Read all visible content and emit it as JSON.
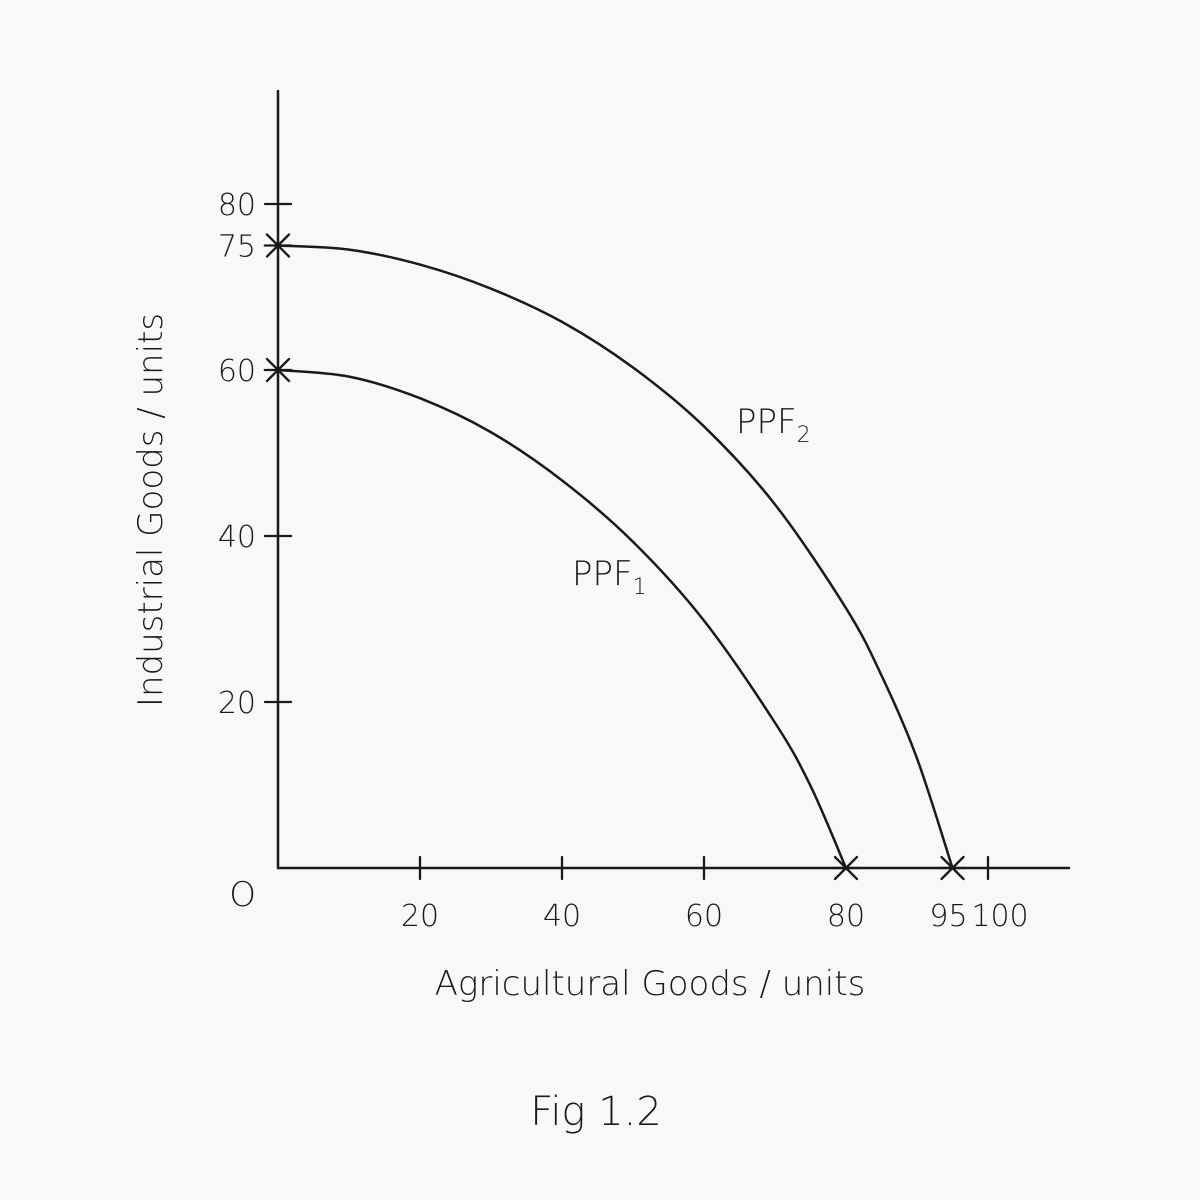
{
  "caption": "Fig 1.2",
  "chart_data": {
    "type": "line",
    "title": "",
    "xlabel": "Agricultural Goods / units",
    "ylabel": "Industrial Goods / units",
    "origin_label": "O",
    "xlim": [
      0,
      110
    ],
    "ylim": [
      0,
      90
    ],
    "x_ticks": [
      {
        "value": 20,
        "label": "20"
      },
      {
        "value": 40,
        "label": "40"
      },
      {
        "value": 60,
        "label": "60"
      },
      {
        "value": 80,
        "label": "80"
      },
      {
        "value": 95,
        "label": "95"
      },
      {
        "value": 100,
        "label": "100"
      }
    ],
    "y_ticks": [
      {
        "value": 20,
        "label": "20"
      },
      {
        "value": 40,
        "label": "40"
      },
      {
        "value": 60,
        "label": "60"
      },
      {
        "value": 75,
        "label": "75"
      },
      {
        "value": 80,
        "label": "80"
      }
    ],
    "intercept_marks_x": [
      80,
      95
    ],
    "intercept_marks_y": [
      60,
      75
    ],
    "series": [
      {
        "name": "PPF1",
        "name_main": "PPF",
        "name_sub": "1",
        "points": [
          [
            0,
            60
          ],
          [
            10,
            59.2
          ],
          [
            20,
            56.6
          ],
          [
            30,
            52.5
          ],
          [
            40,
            46.7
          ],
          [
            50,
            39.3
          ],
          [
            60,
            29.8
          ],
          [
            70,
            17.5
          ],
          [
            75,
            9.9
          ],
          [
            80,
            0
          ]
        ]
      },
      {
        "name": "PPF2",
        "name_main": "PPF",
        "name_sub": "2",
        "points": [
          [
            0,
            75
          ],
          [
            10,
            74.5
          ],
          [
            20,
            72.7
          ],
          [
            30,
            69.8
          ],
          [
            40,
            65.8
          ],
          [
            50,
            60.3
          ],
          [
            60,
            53.2
          ],
          [
            70,
            43.8
          ],
          [
            80,
            31.3
          ],
          [
            85,
            23.2
          ],
          [
            90,
            13.2
          ],
          [
            95,
            0
          ]
        ]
      }
    ],
    "grid": false,
    "legend": "none"
  }
}
